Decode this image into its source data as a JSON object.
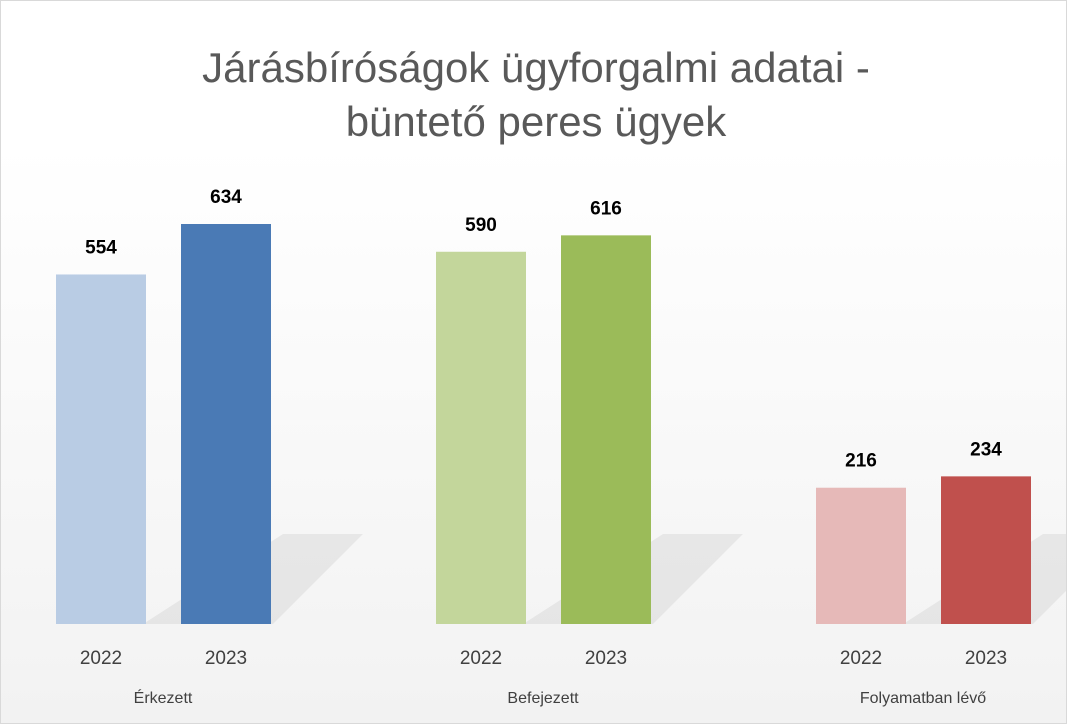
{
  "chart_data": {
    "type": "bar",
    "title": "Járásbíróságok ügyforgalmi adatai - büntető peres ügyek",
    "groups": [
      {
        "name": "Érkezett",
        "categories": [
          "2022",
          "2023"
        ],
        "values": [
          554,
          634
        ],
        "colors": [
          "#b9cce4",
          "#4a7ab5"
        ]
      },
      {
        "name": "Befejezett",
        "categories": [
          "2022",
          "2023"
        ],
        "values": [
          590,
          616
        ],
        "colors": [
          "#c3d69b",
          "#9bbb59"
        ]
      },
      {
        "name": "Folyamatban lévő",
        "categories": [
          "2022",
          "2023"
        ],
        "values": [
          216,
          234
        ],
        "colors": [
          "#e6b9b8",
          "#c0504d"
        ]
      }
    ]
  }
}
